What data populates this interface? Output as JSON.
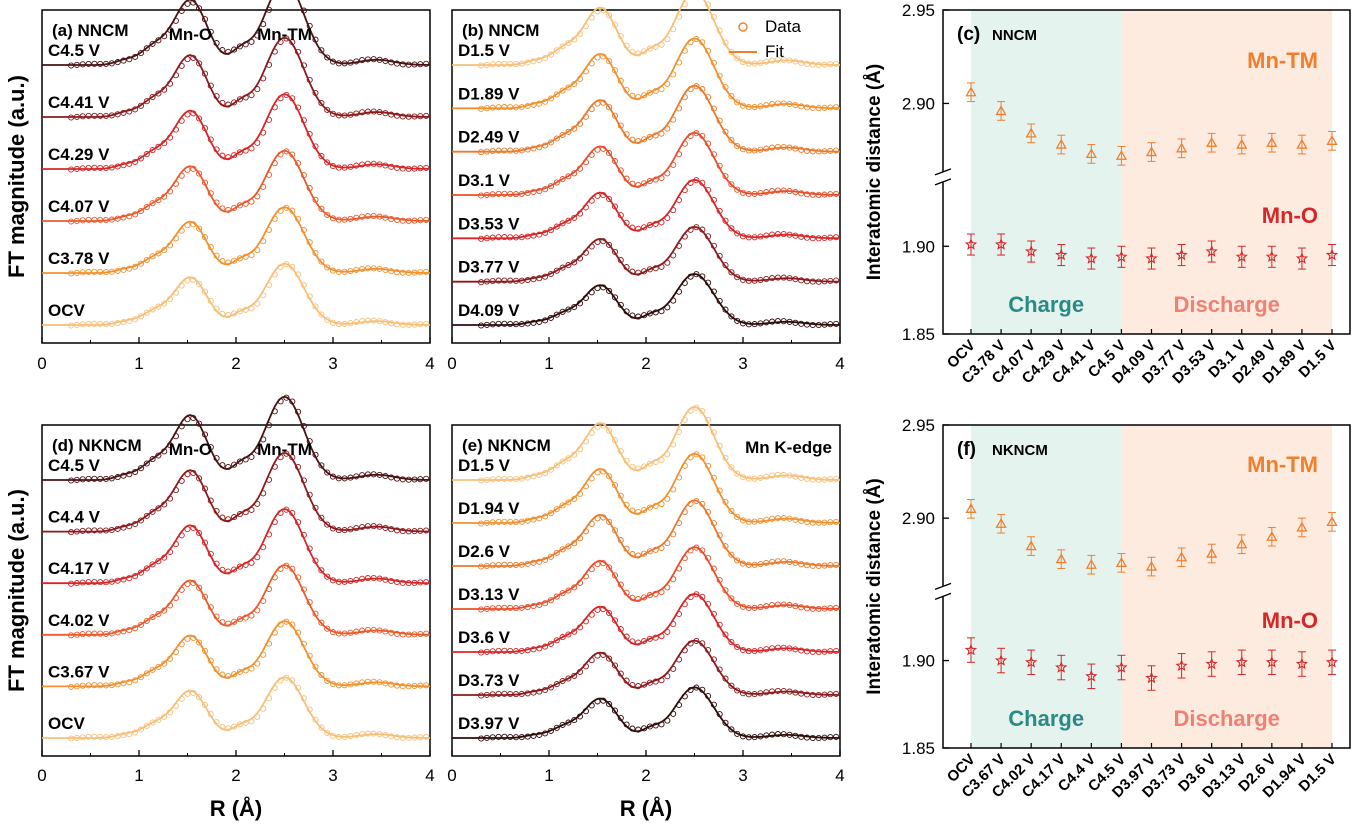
{
  "chart_data": [
    {
      "type": "line",
      "panel": "(a)",
      "sample": "NNCM",
      "xlabel": "",
      "ylabel": "FT magnitude (a.u.)",
      "xlim": [
        0,
        4
      ],
      "xticks": [
        "0",
        "1",
        "2",
        "3",
        "4"
      ],
      "peaks": [
        {
          "label": "Mn-O",
          "x": 1.53
        },
        {
          "label": "Mn-TM",
          "x": 2.5
        }
      ],
      "series": [
        {
          "name": "C4.5 V",
          "color": "#4a1214"
        },
        {
          "name": "C4.41 V",
          "color": "#8c1a1d"
        },
        {
          "name": "C4.29 V",
          "color": "#d62728"
        },
        {
          "name": "C4.07 V",
          "color": "#ec5a2b"
        },
        {
          "name": "C3.78 V",
          "color": "#f2912f"
        },
        {
          "name": "OCV",
          "color": "#f7c07a"
        }
      ]
    },
    {
      "type": "line",
      "panel": "(b)",
      "sample": "NNCM",
      "xlabel": "",
      "ylabel": "",
      "xlim": [
        0,
        4
      ],
      "xticks": [
        "0",
        "1",
        "2",
        "3",
        "4"
      ],
      "legend": [
        {
          "label": "Data",
          "marker": "circle"
        },
        {
          "label": "Fit",
          "marker": "line"
        }
      ],
      "series": [
        {
          "name": "D1.5 V",
          "color": "#f7c07a"
        },
        {
          "name": "D1.89 V",
          "color": "#f2912f"
        },
        {
          "name": "D2.49 V",
          "color": "#ec7a2b"
        },
        {
          "name": "D3.1 V",
          "color": "#e9502a"
        },
        {
          "name": "D3.53 V",
          "color": "#d62728"
        },
        {
          "name": "D3.77 V",
          "color": "#8c1a1d"
        },
        {
          "name": "D4.09 V",
          "color": "#2e0c0c"
        }
      ]
    },
    {
      "type": "scatter",
      "panel": "(c)",
      "sample": "NNCM",
      "xlabel": "",
      "ylabel": "Interatomic distance (Å)",
      "y_ticks": [
        "1.85",
        "1.90",
        "2.90",
        "2.95"
      ],
      "regions": [
        {
          "label": "Charge",
          "color": "#e5f3ef"
        },
        {
          "label": "Discharge",
          "color": "#fdebe0"
        }
      ],
      "categories": [
        "OCV",
        "C3.78 V",
        "C4.07 V",
        "C4.29 V",
        "C4.41 V",
        "C4.5 V",
        "D4.09 V",
        "D3.77 V",
        "D3.53 V",
        "D3.1 V",
        "D2.49 V",
        "D1.89 V",
        "D1.5 V"
      ],
      "series": [
        {
          "name": "Mn-TM",
          "color": "#f07f2d",
          "marker": "triangle",
          "values": [
            2.906,
            2.896,
            2.884,
            2.878,
            2.873,
            2.872,
            2.874,
            2.876,
            2.879,
            2.878,
            2.879,
            2.878,
            2.88
          ],
          "error": 0.005
        },
        {
          "name": "Mn-O",
          "color": "#d62728",
          "marker": "star",
          "values": [
            1.901,
            1.901,
            1.897,
            1.895,
            1.893,
            1.894,
            1.893,
            1.895,
            1.897,
            1.894,
            1.894,
            1.893,
            1.895
          ],
          "error": 0.006
        }
      ]
    },
    {
      "type": "line",
      "panel": "(d)",
      "sample": "NKNCM",
      "xlabel": "R (Å)",
      "ylabel": "FT magnitude (a.u.)",
      "xlim": [
        0,
        4
      ],
      "xticks": [
        "0",
        "1",
        "2",
        "3",
        "4"
      ],
      "peaks": [
        {
          "label": "Mn-O",
          "x": 1.53
        },
        {
          "label": "Mn-TM",
          "x": 2.5
        }
      ],
      "series": [
        {
          "name": "C4.5 V",
          "color": "#4a1214"
        },
        {
          "name": "C4.4 V",
          "color": "#8c1a1d"
        },
        {
          "name": "C4.17 V",
          "color": "#d62728"
        },
        {
          "name": "C4.02 V",
          "color": "#ec5a2b"
        },
        {
          "name": "C3.67 V",
          "color": "#f2912f"
        },
        {
          "name": "OCV",
          "color": "#f7c07a"
        }
      ]
    },
    {
      "type": "line",
      "panel": "(e)",
      "sample": "NKNCM",
      "xlabel": "R (Å)",
      "ylabel": "",
      "xlim": [
        0,
        4
      ],
      "xticks": [
        "0",
        "1",
        "2",
        "3",
        "4"
      ],
      "annotation": "Mn K-edge",
      "series": [
        {
          "name": "D1.5 V",
          "color": "#f7c07a"
        },
        {
          "name": "D1.94 V",
          "color": "#f2912f"
        },
        {
          "name": "D2.6 V",
          "color": "#ec7a2b"
        },
        {
          "name": "D3.13 V",
          "color": "#e9502a"
        },
        {
          "name": "D3.6 V",
          "color": "#d62728"
        },
        {
          "name": "D3.73 V",
          "color": "#8c1a1d"
        },
        {
          "name": "D3.97 V",
          "color": "#2e0c0c"
        }
      ]
    },
    {
      "type": "scatter",
      "panel": "(f)",
      "sample": "NKNCM",
      "xlabel": "",
      "ylabel": "Interatomic distance (Å)",
      "y_ticks": [
        "1.85",
        "1.90",
        "2.90",
        "2.95"
      ],
      "regions": [
        {
          "label": "Charge",
          "color": "#e5f3ef"
        },
        {
          "label": "Discharge",
          "color": "#fdebe0"
        }
      ],
      "categories": [
        "OCV",
        "C3.67 V",
        "C4.02 V",
        "C4.17 V",
        "C4.4 V",
        "C4.5 V",
        "D3.97 V",
        "D3.73 V",
        "D3.6 V",
        "D3.13 V",
        "D2.6 V",
        "D1.94 V",
        "D1.5 V"
      ],
      "series": [
        {
          "name": "Mn-TM",
          "color": "#f07f2d",
          "marker": "triangle",
          "values": [
            2.905,
            2.897,
            2.885,
            2.878,
            2.875,
            2.876,
            2.874,
            2.879,
            2.881,
            2.886,
            2.89,
            2.895,
            2.898
          ],
          "error": 0.005
        },
        {
          "name": "Mn-O",
          "color": "#d62728",
          "marker": "star",
          "values": [
            1.906,
            1.9,
            1.899,
            1.896,
            1.891,
            1.896,
            1.89,
            1.897,
            1.898,
            1.899,
            1.899,
            1.898,
            1.899
          ],
          "error": 0.007
        }
      ]
    }
  ]
}
